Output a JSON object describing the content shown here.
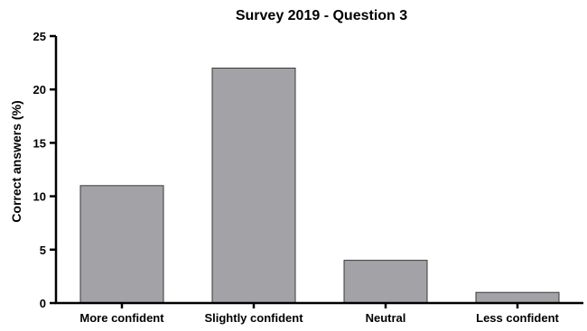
{
  "chart_data": {
    "type": "bar",
    "title": "Survey 2019 - Question 3",
    "xlabel": "",
    "ylabel": "Correct answers (%)",
    "categories": [
      "More confident",
      "Slightly confident",
      "Neutral",
      "Less confident"
    ],
    "values": [
      11,
      22,
      4,
      1
    ],
    "ylim": [
      0,
      25
    ],
    "yticks": [
      "0",
      "5",
      "10",
      "15",
      "20",
      "25"
    ],
    "grid": false,
    "legend": "none",
    "colors": {
      "bar_fill": "#a2a2a7",
      "bar_stroke": "#3a3a3a",
      "axis": "#000000"
    }
  }
}
